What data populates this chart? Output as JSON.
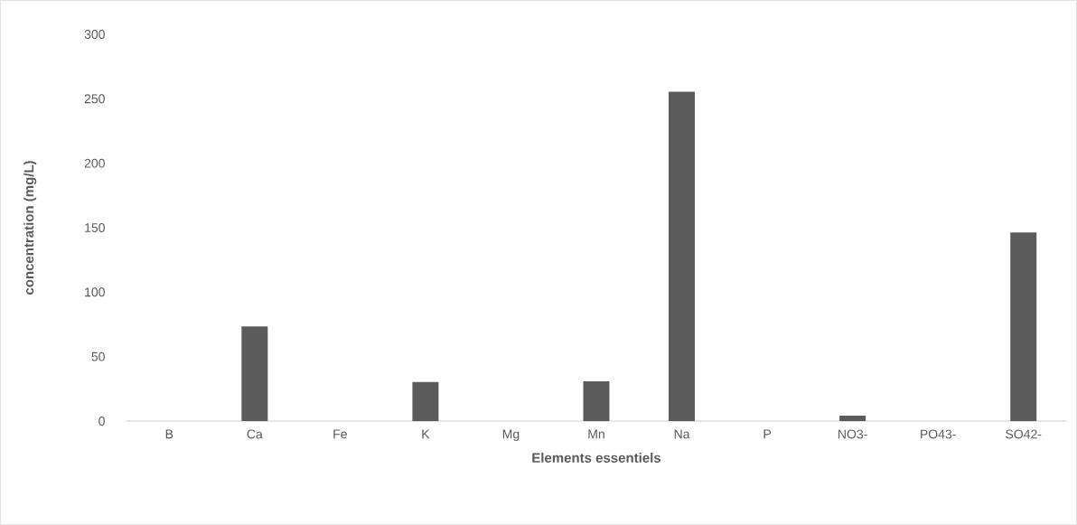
{
  "chart_data": {
    "type": "bar",
    "xlabel": "Elements essentiels",
    "ylabel": "concentration (mg/L)",
    "categories": [
      "B",
      "Ca",
      "Fe",
      "K",
      "Mg",
      "Mn",
      "Na",
      "P",
      "NO3-",
      "PO43-",
      "SO42-"
    ],
    "values": [
      0,
      73.4,
      0,
      30.3,
      0,
      30.8,
      255.5,
      0,
      4.2,
      0,
      146.3
    ],
    "color": "#5b5b5b",
    "ylim": [
      0,
      300
    ],
    "yticks": [
      0,
      50,
      100,
      150,
      200,
      250,
      300
    ]
  }
}
